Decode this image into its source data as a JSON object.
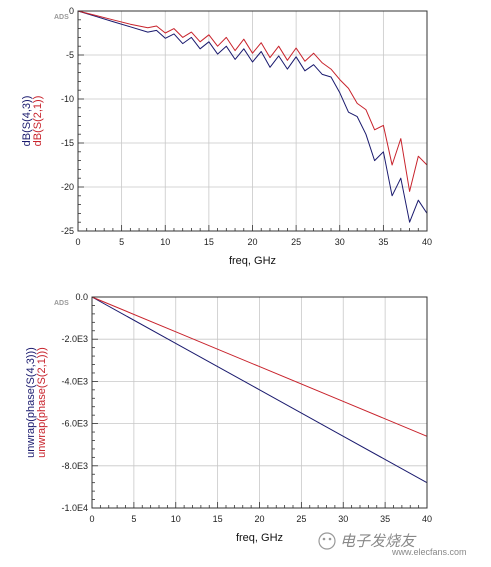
{
  "watermark": {
    "brand": "ADS",
    "site_cn": "电子发烧友",
    "site_url": "www.elecfans.com"
  },
  "colors": {
    "s43": "#1a1a6e",
    "s21": "#c8232c",
    "grid": "#c8c8c8",
    "axis": "#333333"
  },
  "chart_data": [
    {
      "type": "line",
      "title": "",
      "badge": "ADS",
      "xlabel": "freq, GHz",
      "ylabel_lines": [
        "dB(S(4,3))",
        "dB(S(2,1))"
      ],
      "xlim": [
        0,
        40
      ],
      "ylim": [
        -25,
        0
      ],
      "x_ticks": [
        0,
        5,
        10,
        15,
        20,
        25,
        30,
        35,
        40
      ],
      "y_ticks": [
        0,
        -5,
        -10,
        -15,
        -20,
        -25
      ],
      "y_tick_labels": [
        "0",
        "-5",
        "-10",
        "-15",
        "-20",
        "-25"
      ],
      "grid": true,
      "series": [
        {
          "name": "dB(S(4,3))",
          "color": "#1a1a6e",
          "x": [
            0,
            2,
            4,
            6,
            8,
            9,
            10,
            11,
            12,
            13,
            14,
            15,
            16,
            17,
            18,
            19,
            20,
            21,
            22,
            23,
            24,
            25,
            26,
            27,
            28,
            29,
            30,
            31,
            32,
            33,
            34,
            35,
            36,
            37,
            38,
            39,
            40
          ],
          "values": [
            0,
            -0.6,
            -1.2,
            -1.8,
            -2.4,
            -2.2,
            -3.1,
            -2.6,
            -3.7,
            -3.0,
            -4.3,
            -3.5,
            -4.9,
            -4.0,
            -5.5,
            -4.3,
            -5.8,
            -4.6,
            -6.4,
            -5.1,
            -6.6,
            -5.2,
            -6.8,
            -6.1,
            -7.2,
            -7.5,
            -9.3,
            -11.5,
            -12.0,
            -14.0,
            -17.0,
            -16.0,
            -21.0,
            -19.0,
            -24.0,
            -21.5,
            -23.0
          ]
        },
        {
          "name": "dB(S(2,1))",
          "color": "#c8232c",
          "x": [
            0,
            2,
            4,
            6,
            8,
            9,
            10,
            11,
            12,
            13,
            14,
            15,
            16,
            17,
            18,
            19,
            20,
            21,
            22,
            23,
            24,
            25,
            26,
            27,
            28,
            29,
            30,
            31,
            32,
            33,
            34,
            35,
            36,
            37,
            38,
            39,
            40
          ],
          "values": [
            0,
            -0.5,
            -1.0,
            -1.5,
            -1.9,
            -1.7,
            -2.5,
            -2.0,
            -3.0,
            -2.4,
            -3.5,
            -2.7,
            -4.0,
            -3.0,
            -4.5,
            -3.2,
            -4.8,
            -3.6,
            -5.3,
            -4.0,
            -5.6,
            -4.2,
            -5.7,
            -4.8,
            -5.9,
            -6.6,
            -7.8,
            -8.8,
            -10.5,
            -11.2,
            -13.5,
            -13.0,
            -17.5,
            -14.5,
            -20.5,
            -16.5,
            -17.5
          ]
        }
      ]
    },
    {
      "type": "line",
      "title": "",
      "badge": "ADS",
      "xlabel": "freq, GHz",
      "ylabel_lines": [
        "unwrap(phase(S(4,3)))",
        "unwrap(phase(S(2,1)))"
      ],
      "xlim": [
        0,
        40
      ],
      "ylim": [
        -10000,
        0
      ],
      "x_ticks": [
        0,
        5,
        10,
        15,
        20,
        25,
        30,
        35,
        40
      ],
      "y_ticks": [
        0,
        -2000,
        -4000,
        -6000,
        -8000,
        -10000
      ],
      "y_tick_labels": [
        "0.0",
        "-2.0E3",
        "-4.0E3",
        "-6.0E3",
        "-8.0E3",
        "-1.0E4"
      ],
      "grid": true,
      "series": [
        {
          "name": "unwrap(phase(S(4,3)))",
          "color": "#1a1a6e",
          "x": [
            0,
            10,
            20,
            30,
            40
          ],
          "values": [
            0,
            -2200,
            -4400,
            -6600,
            -8800
          ]
        },
        {
          "name": "unwrap(phase(S(2,1)))",
          "color": "#c8232c",
          "x": [
            0,
            10,
            20,
            30,
            40
          ],
          "values": [
            0,
            -1650,
            -3300,
            -4950,
            -6600
          ]
        }
      ]
    }
  ]
}
